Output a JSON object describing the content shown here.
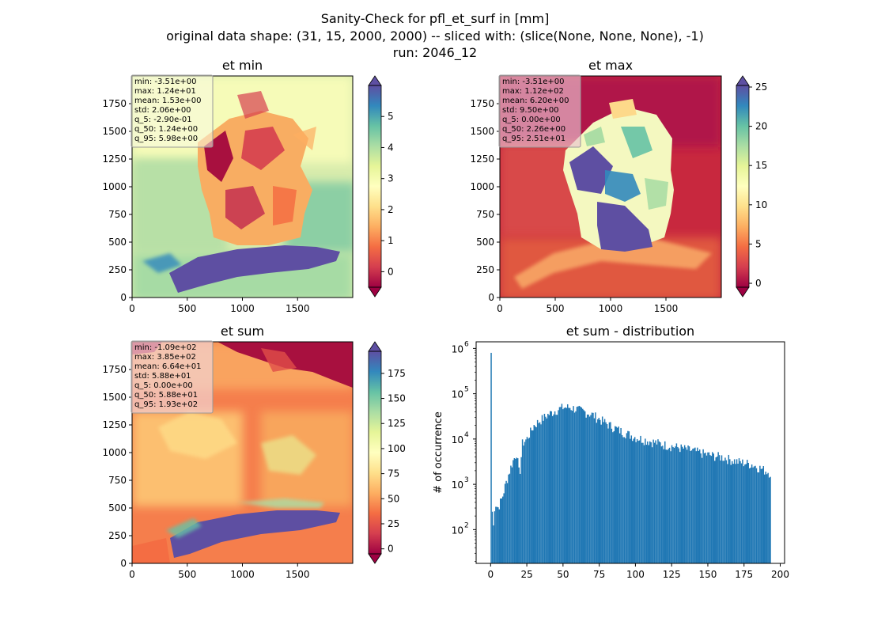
{
  "figure": {
    "title_lines": [
      "Sanity-Check for pfl_et_surf in [mm]",
      "original data shape: (31, 15, 2000, 2000) -- sliced with: (slice(None, None, None), -1)",
      "run: 2046_12"
    ]
  },
  "chart_data": [
    {
      "type": "heatmap",
      "title": "et min",
      "xlim": [
        0,
        2000
      ],
      "ylim": [
        0,
        2000
      ],
      "xticks": [
        "0",
        "500",
        "1000",
        "1500"
      ],
      "yticks": [
        "0",
        "250",
        "500",
        "750",
        "1000",
        "1250",
        "1500",
        "1750"
      ],
      "colormap": "Spectral",
      "colorbar": {
        "range": [
          -0.5,
          6
        ],
        "ticks": [
          "0",
          "1",
          "2",
          "3",
          "4",
          "5"
        ],
        "tick_values": [
          0,
          1,
          2,
          3,
          4,
          5
        ],
        "extend": "both"
      },
      "stats": [
        "min: -3.51e+00",
        "max: 1.24e+01",
        "mean: 1.53e+00",
        "std: 2.06e+00",
        "q_5: -2.90e-01",
        "q_50: 1.24e+00",
        "q_95: 5.98e+00"
      ],
      "stats_box_color": "#f5f5dc"
    },
    {
      "type": "heatmap",
      "title": "et max",
      "xlim": [
        0,
        2000
      ],
      "ylim": [
        0,
        2000
      ],
      "xticks": [
        "0",
        "500",
        "1000",
        "1500"
      ],
      "yticks": [
        "0",
        "250",
        "500",
        "750",
        "1000",
        "1250",
        "1500",
        "1750"
      ],
      "colormap": "Spectral",
      "colorbar": {
        "range": [
          -0.5,
          25.2
        ],
        "ticks": [
          "0",
          "5",
          "10",
          "15",
          "20",
          "25"
        ],
        "tick_values": [
          0,
          5,
          10,
          15,
          20,
          25
        ],
        "extend": "both"
      },
      "stats": [
        "min: -3.51e+00",
        "max: 1.12e+02",
        "mean: 6.20e+00",
        "std: 9.50e+00",
        "q_5: 0.00e+00",
        "q_50: 2.26e+00",
        "q_95: 2.51e+01"
      ],
      "stats_box_color": "#d98aa3"
    },
    {
      "type": "heatmap",
      "title": "et sum",
      "xlim": [
        0,
        2000
      ],
      "ylim": [
        0,
        2000
      ],
      "xticks": [
        "0",
        "500",
        "1000",
        "1500"
      ],
      "yticks": [
        "0",
        "250",
        "500",
        "750",
        "1000",
        "1250",
        "1500",
        "1750"
      ],
      "colormap": "Spectral",
      "colorbar": {
        "range": [
          -5,
          197
        ],
        "ticks": [
          "0",
          "25",
          "50",
          "75",
          "100",
          "125",
          "150",
          "175"
        ],
        "tick_values": [
          0,
          25,
          50,
          75,
          100,
          125,
          150,
          175
        ],
        "extend": "both"
      },
      "stats": [
        "min: -1.09e+02",
        "max: 3.85e+02",
        "mean: 6.64e+01",
        "std: 5.88e+01",
        "q_5: 0.00e+00",
        "q_50: 5.88e+01",
        "q_95: 1.93e+02"
      ],
      "stats_box_color": "#eec3c3"
    },
    {
      "type": "bar",
      "title": "et sum - distribution",
      "ylabel": "# of occurrence",
      "yscale": "log",
      "xlim": [
        -10,
        203
      ],
      "ylim": [
        18,
        1400000
      ],
      "xticks": [
        "0",
        "25",
        "50",
        "75",
        "100",
        "125",
        "150",
        "175",
        "200"
      ],
      "xtick_values": [
        0,
        25,
        50,
        75,
        100,
        125,
        150,
        175,
        200
      ],
      "yticks": [
        "10",
        "10",
        "10",
        "10",
        "10"
      ],
      "ytick_exponents": [
        "2",
        "3",
        "4",
        "5",
        "6"
      ],
      "ytick_values": [
        100,
        1000,
        10000,
        100000,
        1000000
      ],
      "bar_color": "#1f77b4",
      "profile_x": [
        0,
        1,
        2,
        3,
        5,
        8,
        10,
        12,
        15,
        18,
        20,
        22,
        25,
        30,
        35,
        40,
        45,
        50,
        55,
        60,
        65,
        70,
        75,
        80,
        90,
        100,
        110,
        120,
        130,
        140,
        150,
        160,
        170,
        180,
        190,
        193
      ],
      "profile_y": [
        800000,
        300,
        120,
        400,
        300,
        500,
        900,
        1500,
        3000,
        5000,
        1500,
        8000,
        10000,
        20000,
        27000,
        35000,
        43000,
        50000,
        50000,
        45000,
        40000,
        35000,
        28000,
        22000,
        15000,
        11000,
        9000,
        7500,
        6500,
        5500,
        4500,
        4000,
        3200,
        2800,
        2000,
        1800
      ]
    }
  ]
}
